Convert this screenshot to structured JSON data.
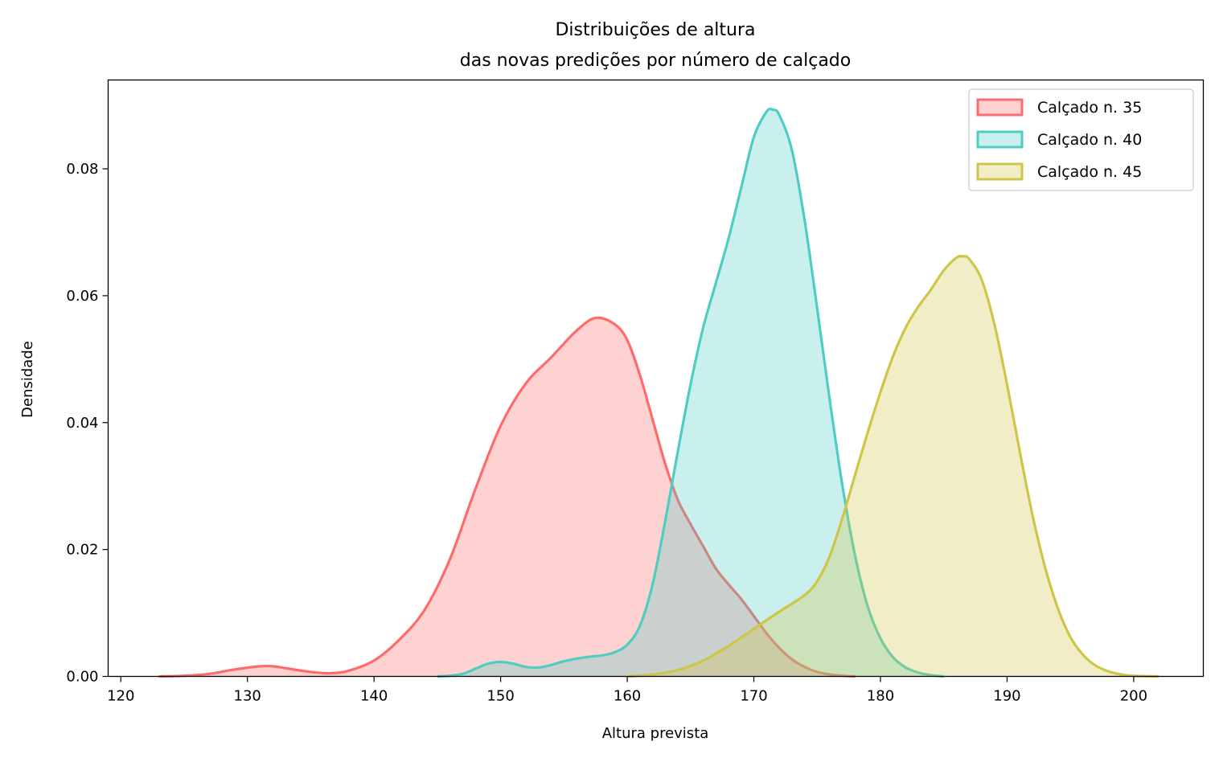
{
  "chart_data": {
    "type": "area",
    "title_line1": "Distribuições de altura",
    "title_line2": "das novas predições por número de calçado",
    "xlabel": "Altura prevista",
    "ylabel": "Densidade",
    "xlim": [
      119,
      205.5
    ],
    "ylim": [
      0,
      0.094
    ],
    "xticks": [
      120,
      130,
      140,
      150,
      160,
      170,
      180,
      190,
      200
    ],
    "yticks": [
      0.0,
      0.02,
      0.04,
      0.06,
      0.08
    ],
    "ytick_labels": [
      "0.00",
      "0.02",
      "0.04",
      "0.06",
      "0.08"
    ],
    "grid": false,
    "legend_position": "top-right",
    "series": [
      {
        "name": "Calçado n. 35",
        "color": "#ff6b6b",
        "points": [
          [
            123,
            0
          ],
          [
            125,
            0.0001
          ],
          [
            127,
            0.0004
          ],
          [
            129,
            0.0011
          ],
          [
            131,
            0.0016
          ],
          [
            132,
            0.0016
          ],
          [
            133,
            0.0013
          ],
          [
            135,
            0.0007
          ],
          [
            136.5,
            0.0005
          ],
          [
            138,
            0.0009
          ],
          [
            140,
            0.0025
          ],
          [
            142,
            0.0058
          ],
          [
            144,
            0.0105
          ],
          [
            146,
            0.0185
          ],
          [
            148,
            0.0295
          ],
          [
            150,
            0.0395
          ],
          [
            152,
            0.0462
          ],
          [
            154,
            0.0503
          ],
          [
            156,
            0.0545
          ],
          [
            157.5,
            0.0565
          ],
          [
            159,
            0.0555
          ],
          [
            160,
            0.053
          ],
          [
            161,
            0.0475
          ],
          [
            162,
            0.0405
          ],
          [
            163,
            0.0335
          ],
          [
            164,
            0.0278
          ],
          [
            165,
            0.024
          ],
          [
            166,
            0.0205
          ],
          [
            167,
            0.017
          ],
          [
            168,
            0.0145
          ],
          [
            169,
            0.0122
          ],
          [
            170,
            0.0095
          ],
          [
            171,
            0.0068
          ],
          [
            172,
            0.0045
          ],
          [
            173,
            0.0027
          ],
          [
            174,
            0.0015
          ],
          [
            175,
            0.0007
          ],
          [
            176,
            0.0003
          ],
          [
            177,
            0.0001
          ],
          [
            178,
            0
          ]
        ]
      },
      {
        "name": "Calçado n. 40",
        "color": "#4ecdc4",
        "points": [
          [
            145,
            0
          ],
          [
            146,
            0.0001
          ],
          [
            147,
            0.0004
          ],
          [
            148,
            0.0012
          ],
          [
            149,
            0.002
          ],
          [
            150,
            0.0023
          ],
          [
            151,
            0.002
          ],
          [
            152,
            0.0015
          ],
          [
            153,
            0.0014
          ],
          [
            154,
            0.0018
          ],
          [
            155,
            0.0024
          ],
          [
            156,
            0.0028
          ],
          [
            157,
            0.0031
          ],
          [
            158,
            0.0033
          ],
          [
            159,
            0.0038
          ],
          [
            160,
            0.005
          ],
          [
            161,
            0.008
          ],
          [
            162,
            0.0145
          ],
          [
            163,
            0.0245
          ],
          [
            164,
            0.0355
          ],
          [
            165,
            0.046
          ],
          [
            166,
            0.055
          ],
          [
            167,
            0.062
          ],
          [
            168,
            0.069
          ],
          [
            169,
            0.077
          ],
          [
            170,
            0.085
          ],
          [
            171,
            0.089
          ],
          [
            171.5,
            0.0893
          ],
          [
            172,
            0.0885
          ],
          [
            173,
            0.083
          ],
          [
            174,
            0.072
          ],
          [
            175,
            0.058
          ],
          [
            176,
            0.0435
          ],
          [
            177,
            0.03
          ],
          [
            178,
            0.019
          ],
          [
            179,
            0.011
          ],
          [
            180,
            0.006
          ],
          [
            181,
            0.003
          ],
          [
            182,
            0.0014
          ],
          [
            183,
            0.0006
          ],
          [
            184,
            0.0002
          ],
          [
            185,
            0
          ]
        ]
      },
      {
        "name": "Calçado n. 45",
        "color": "#cfc547",
        "points": [
          [
            160,
            0
          ],
          [
            162,
            0.0003
          ],
          [
            164,
            0.001
          ],
          [
            166,
            0.0025
          ],
          [
            168,
            0.0048
          ],
          [
            170,
            0.0075
          ],
          [
            172,
            0.0102
          ],
          [
            174,
            0.0128
          ],
          [
            175,
            0.015
          ],
          [
            176,
            0.019
          ],
          [
            177,
            0.025
          ],
          [
            178,
            0.0318
          ],
          [
            179,
            0.0385
          ],
          [
            180,
            0.0448
          ],
          [
            181,
            0.0505
          ],
          [
            182,
            0.055
          ],
          [
            183,
            0.0583
          ],
          [
            184,
            0.061
          ],
          [
            185,
            0.064
          ],
          [
            186,
            0.066
          ],
          [
            186.5,
            0.0662
          ],
          [
            187,
            0.0658
          ],
          [
            188,
            0.0625
          ],
          [
            189,
            0.0555
          ],
          [
            190,
            0.046
          ],
          [
            191,
            0.0355
          ],
          [
            192,
            0.0255
          ],
          [
            193,
            0.0172
          ],
          [
            194,
            0.0108
          ],
          [
            195,
            0.0062
          ],
          [
            196,
            0.0034
          ],
          [
            197,
            0.0017
          ],
          [
            198,
            0.0008
          ],
          [
            199,
            0.0003
          ],
          [
            200,
            0.0001
          ],
          [
            202,
            0
          ]
        ]
      }
    ]
  }
}
